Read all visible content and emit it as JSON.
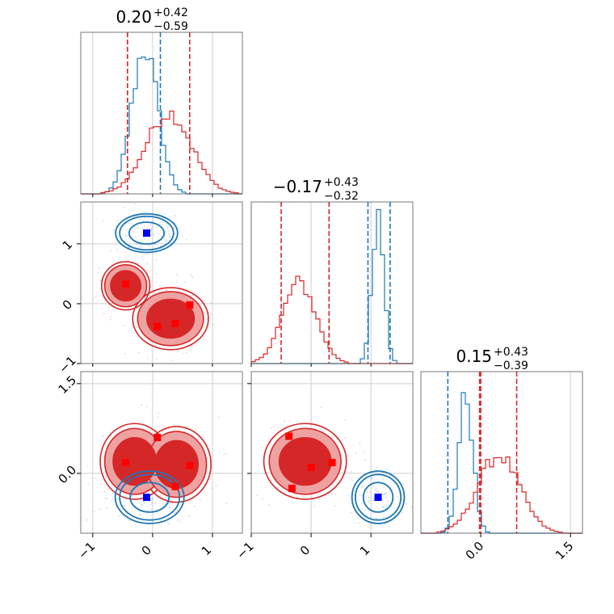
{
  "colors": {
    "red": "#d62728",
    "red_fill_light": "#eea2a2",
    "red_fill_dark": "#d62728",
    "blue": "#1f77b4",
    "marker_red": "#ff0000",
    "marker_blue": "#0000ff",
    "grid": "#cfcfcf"
  },
  "chart_data": {
    "type": "corner",
    "titles": [
      {
        "value": "0.20",
        "plus": "+0.42",
        "minus": "−0.59"
      },
      {
        "value": "−0.17",
        "plus": "+0.43",
        "minus": "−0.32"
      },
      {
        "value": "0.15",
        "plus": "+0.43",
        "minus": "−0.39"
      }
    ],
    "params": [
      {
        "range": [
          -1.2,
          1.5
        ],
        "ticks": [
          -1,
          0,
          1
        ],
        "tick_labels": [
          "−1",
          "0",
          "1"
        ]
      },
      {
        "range": [
          -1.0,
          1.7
        ],
        "ticks": [
          -1,
          0,
          1
        ],
        "tick_labels": [
          "−1",
          "0",
          "1"
        ]
      },
      {
        "range": [
          -1.0,
          1.7
        ],
        "ticks": [
          0.0,
          1.5
        ],
        "tick_labels": [
          "0.0",
          "1.5"
        ]
      }
    ],
    "diagonals": [
      {
        "series": [
          {
            "color": "blue",
            "mean": -0.13,
            "sd": 0.22,
            "peak": 0.9,
            "quantiles": [
              -0.42,
              0.13
            ],
            "quantile_colors": [
              "blue",
              "blue"
            ]
          },
          {
            "color": "red",
            "mean": 0.27,
            "sd": 0.38,
            "peak": 0.5,
            "quantiles": [
              -0.42,
              0.62
            ],
            "quantile_colors": [
              "red",
              "red"
            ]
          }
        ]
      },
      {
        "series": [
          {
            "color": "blue",
            "mean": 1.12,
            "sd": 0.1,
            "peak": 0.9,
            "quantiles": [
              0.95,
              1.32
            ],
            "quantile_colors": [
              "blue",
              "blue"
            ]
          },
          {
            "color": "red",
            "mean": -0.2,
            "sd": 0.28,
            "peak": 0.5,
            "quantiles": [
              -0.5,
              0.3
            ],
            "quantile_colors": [
              "red",
              "red"
            ]
          }
        ]
      },
      {
        "series": [
          {
            "color": "blue",
            "mean": -0.25,
            "sd": 0.12,
            "peak": 0.85,
            "quantiles": [
              -0.55,
              0.0
            ],
            "quantile_colors": [
              "blue",
              "red"
            ]
          },
          {
            "color": "red",
            "mean": 0.3,
            "sd": 0.35,
            "peak": 0.48,
            "quantiles": [
              -0.02,
              0.6
            ],
            "quantile_colors": [
              "red",
              "red"
            ]
          }
        ]
      }
    ],
    "pairs": [
      {
        "row": 1,
        "col": 0,
        "red_markers": [
          [
            -0.45,
            0.33
          ],
          [
            0.08,
            -0.38
          ],
          [
            0.38,
            -0.33
          ],
          [
            0.62,
            -0.02
          ]
        ],
        "blue_markers": [
          [
            -0.1,
            1.18
          ]
        ],
        "red_blobs": [
          [
            -0.45,
            0.3,
            0.35,
            0.35
          ],
          [
            0.3,
            -0.25,
            0.55,
            0.45
          ]
        ],
        "blue_blobs": [
          [
            -0.1,
            1.18,
            0.45,
            0.28
          ]
        ]
      },
      {
        "row": 2,
        "col": 0,
        "red_markers": [
          [
            -0.45,
            0.18
          ],
          [
            0.08,
            0.6
          ],
          [
            0.62,
            0.13
          ],
          [
            0.38,
            -0.22
          ]
        ],
        "blue_markers": [
          [
            -0.1,
            -0.4
          ]
        ],
        "red_blobs": [
          [
            -0.3,
            0.2,
            0.5,
            0.55
          ],
          [
            0.4,
            0.15,
            0.5,
            0.55
          ]
        ],
        "blue_blobs": [
          [
            -0.05,
            -0.4,
            0.5,
            0.38
          ]
        ]
      },
      {
        "row": 2,
        "col": 1,
        "red_markers": [
          [
            -0.37,
            0.62
          ],
          [
            -0.32,
            -0.25
          ],
          [
            0.0,
            0.1
          ],
          [
            0.35,
            0.18
          ]
        ],
        "blue_markers": [
          [
            1.12,
            -0.4
          ]
        ],
        "red_blobs": [
          [
            -0.1,
            0.2,
            0.6,
            0.55
          ]
        ],
        "blue_blobs": [
          [
            1.12,
            -0.4,
            0.38,
            0.38
          ]
        ]
      }
    ]
  }
}
